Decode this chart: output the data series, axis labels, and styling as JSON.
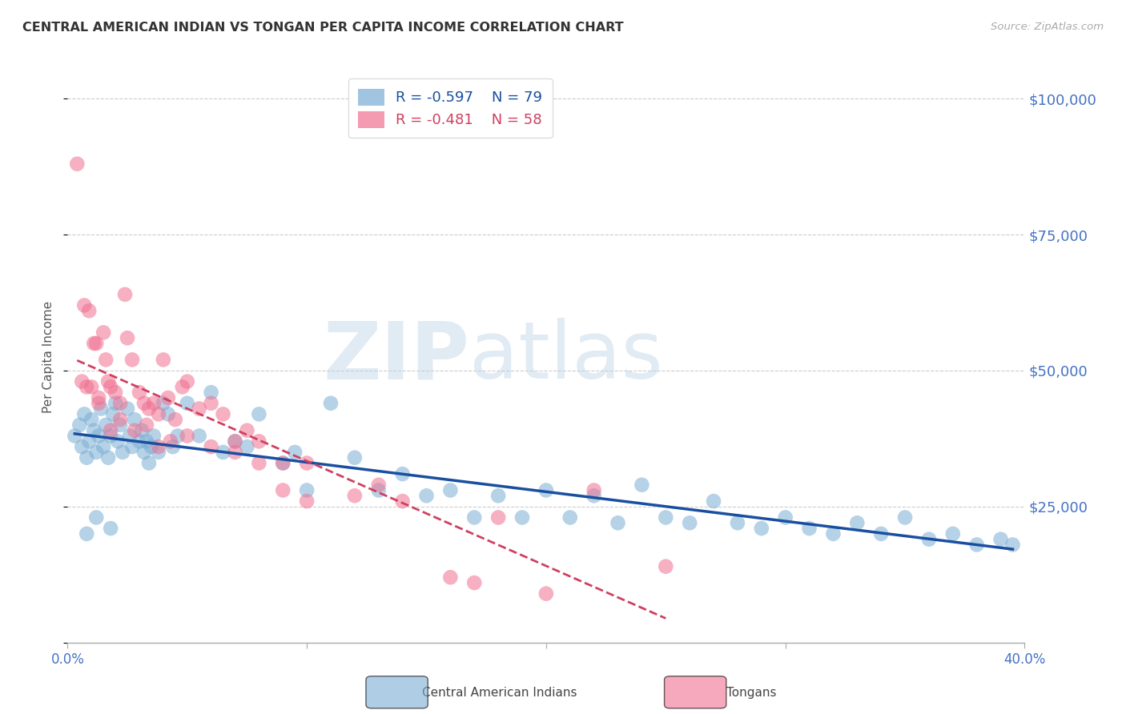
{
  "title": "CENTRAL AMERICAN INDIAN VS TONGAN PER CAPITA INCOME CORRELATION CHART",
  "source": "Source: ZipAtlas.com",
  "ylabel": "Per Capita Income",
  "xlim": [
    0.0,
    0.4
  ],
  "ylim": [
    0,
    105000
  ],
  "yticks": [
    0,
    25000,
    50000,
    75000,
    100000
  ],
  "ytick_labels": [
    "",
    "$25,000",
    "$50,000",
    "$75,000",
    "$100,000"
  ],
  "xticks": [
    0.0,
    0.1,
    0.2,
    0.3,
    0.4
  ],
  "xtick_labels": [
    "0.0%",
    "",
    "",
    "",
    "40.0%"
  ],
  "background_color": "#ffffff",
  "grid_color": "#cccccc",
  "title_color": "#333333",
  "source_color": "#aaaaaa",
  "ylabel_color": "#555555",
  "ytick_color": "#4472c4",
  "xtick_color": "#4472c4",
  "blue_color": "#7aadd4",
  "pink_color": "#f07090",
  "blue_line_color": "#1a4fa0",
  "pink_line_color": "#d04060",
  "legend_r_blue": "-0.597",
  "legend_n_blue": "79",
  "legend_r_pink": "-0.481",
  "legend_n_pink": "58",
  "watermark_zip": "ZIP",
  "watermark_atlas": "atlas",
  "blue_scatter_x": [
    0.003,
    0.005,
    0.006,
    0.007,
    0.008,
    0.009,
    0.01,
    0.011,
    0.012,
    0.013,
    0.014,
    0.015,
    0.016,
    0.017,
    0.018,
    0.019,
    0.02,
    0.021,
    0.022,
    0.023,
    0.025,
    0.026,
    0.027,
    0.028,
    0.03,
    0.031,
    0.032,
    0.033,
    0.034,
    0.035,
    0.036,
    0.038,
    0.04,
    0.042,
    0.044,
    0.046,
    0.05,
    0.055,
    0.06,
    0.065,
    0.07,
    0.075,
    0.08,
    0.09,
    0.095,
    0.1,
    0.11,
    0.12,
    0.13,
    0.14,
    0.15,
    0.16,
    0.17,
    0.18,
    0.19,
    0.2,
    0.21,
    0.22,
    0.23,
    0.24,
    0.25,
    0.26,
    0.27,
    0.28,
    0.29,
    0.3,
    0.31,
    0.32,
    0.33,
    0.34,
    0.35,
    0.36,
    0.37,
    0.38,
    0.39,
    0.395,
    0.008,
    0.012,
    0.018
  ],
  "blue_scatter_y": [
    38000,
    40000,
    36000,
    42000,
    34000,
    37000,
    41000,
    39000,
    35000,
    38000,
    43000,
    36000,
    40000,
    34000,
    38000,
    42000,
    44000,
    37000,
    40000,
    35000,
    43000,
    38000,
    36000,
    41000,
    37000,
    39000,
    35000,
    37000,
    33000,
    36000,
    38000,
    35000,
    44000,
    42000,
    36000,
    38000,
    44000,
    38000,
    46000,
    35000,
    37000,
    36000,
    42000,
    33000,
    35000,
    28000,
    44000,
    34000,
    28000,
    31000,
    27000,
    28000,
    23000,
    27000,
    23000,
    28000,
    23000,
    27000,
    22000,
    29000,
    23000,
    22000,
    26000,
    22000,
    21000,
    23000,
    21000,
    20000,
    22000,
    20000,
    23000,
    19000,
    20000,
    18000,
    19000,
    18000,
    20000,
    23000,
    21000
  ],
  "pink_scatter_x": [
    0.004,
    0.006,
    0.007,
    0.008,
    0.009,
    0.01,
    0.011,
    0.012,
    0.013,
    0.015,
    0.016,
    0.017,
    0.018,
    0.02,
    0.022,
    0.024,
    0.025,
    0.027,
    0.03,
    0.032,
    0.034,
    0.036,
    0.038,
    0.04,
    0.042,
    0.045,
    0.048,
    0.05,
    0.055,
    0.06,
    0.065,
    0.07,
    0.075,
    0.08,
    0.09,
    0.1,
    0.12,
    0.14,
    0.16,
    0.18,
    0.2,
    0.22,
    0.25,
    0.013,
    0.018,
    0.022,
    0.028,
    0.033,
    0.038,
    0.043,
    0.05,
    0.06,
    0.07,
    0.08,
    0.09,
    0.1,
    0.13,
    0.17
  ],
  "pink_scatter_y": [
    88000,
    48000,
    62000,
    47000,
    61000,
    47000,
    55000,
    55000,
    44000,
    57000,
    52000,
    48000,
    47000,
    46000,
    44000,
    64000,
    56000,
    52000,
    46000,
    44000,
    43000,
    44000,
    42000,
    52000,
    45000,
    41000,
    47000,
    48000,
    43000,
    44000,
    42000,
    37000,
    39000,
    33000,
    28000,
    26000,
    27000,
    26000,
    12000,
    23000,
    9000,
    28000,
    14000,
    45000,
    39000,
    41000,
    39000,
    40000,
    36000,
    37000,
    38000,
    36000,
    35000,
    37000,
    33000,
    33000,
    29000,
    11000
  ]
}
